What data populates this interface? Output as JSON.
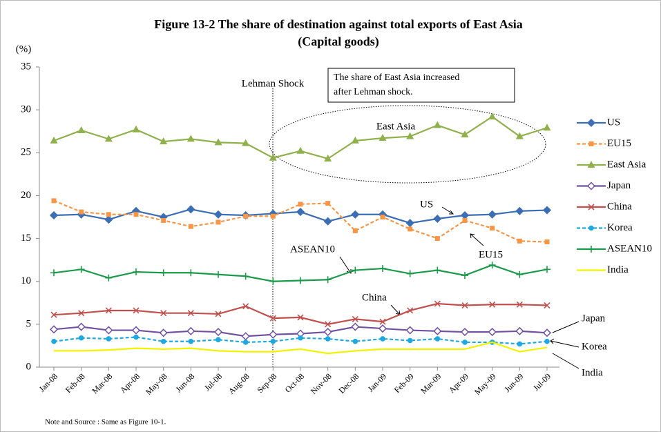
{
  "chart_data": {
    "type": "line",
    "title": [
      "Figure 13-2 The share of destination against total exports of East Asia",
      "(Capital goods)"
    ],
    "y_label": "(%)",
    "note": "Note and Source : Same as Figure 10-1.",
    "categories": [
      "Jan-08",
      "Feb-08",
      "Mar-08",
      "Apr-08",
      "May-08",
      "Jun-08",
      "Jul-08",
      "Aug-08",
      "Sep-08",
      "Oct-08",
      "Nov-08",
      "Dec-08",
      "Jan-09",
      "Feb-09",
      "Mar-09",
      "Apr-09",
      "May-09",
      "Jun-09",
      "Jul-09"
    ],
    "ylim": [
      0,
      35
    ],
    "yticks": [
      0,
      5,
      10,
      15,
      20,
      25,
      30,
      35
    ],
    "legend": "right",
    "series": [
      {
        "name": "US",
        "color": "#3c6eb4",
        "marker": "diamond",
        "values": [
          17.7,
          17.8,
          17.2,
          18.2,
          17.5,
          18.4,
          17.8,
          17.7,
          17.9,
          18.1,
          17.0,
          17.8,
          17.8,
          16.8,
          17.3,
          17.7,
          17.8,
          18.2,
          18.3
        ]
      },
      {
        "name": "EU15",
        "color": "#f79646",
        "marker": "square",
        "dashed": true,
        "values": [
          19.4,
          18.1,
          17.8,
          17.8,
          17.1,
          16.4,
          16.9,
          17.6,
          17.6,
          19.0,
          19.1,
          15.9,
          17.5,
          16.1,
          15.0,
          17.1,
          16.2,
          14.7,
          14.6
        ]
      },
      {
        "name": "East Asia",
        "color": "#8fb04a",
        "marker": "triangle",
        "values": [
          26.4,
          27.6,
          26.6,
          27.7,
          26.3,
          26.6,
          26.2,
          26.1,
          24.4,
          25.2,
          24.3,
          26.4,
          26.7,
          26.9,
          28.2,
          27.1,
          29.2,
          26.9,
          27.9
        ]
      },
      {
        "name": "Japan",
        "color": "#7050a0",
        "marker": "hollow-diamond",
        "values": [
          4.4,
          4.7,
          4.3,
          4.3,
          4.0,
          4.2,
          4.1,
          3.6,
          3.8,
          3.9,
          4.1,
          4.7,
          4.5,
          4.3,
          4.2,
          4.1,
          4.1,
          4.2,
          4.0
        ]
      },
      {
        "name": "China",
        "color": "#c0504d",
        "marker": "x",
        "values": [
          6.1,
          6.3,
          6.6,
          6.6,
          6.3,
          6.3,
          6.2,
          7.1,
          5.7,
          5.8,
          5.0,
          5.6,
          5.3,
          6.6,
          7.4,
          7.2,
          7.3,
          7.3,
          7.2
        ]
      },
      {
        "name": "Korea",
        "color": "#1fa8e0",
        "marker": "circle",
        "dashed": true,
        "values": [
          3.0,
          3.4,
          3.3,
          3.5,
          3.0,
          3.0,
          3.2,
          2.9,
          3.0,
          3.4,
          3.3,
          3.0,
          3.3,
          3.1,
          3.3,
          2.9,
          2.9,
          2.7,
          3.0
        ]
      },
      {
        "name": "ASEAN10",
        "color": "#1a9a48",
        "marker": "plus",
        "values": [
          11.0,
          11.4,
          10.4,
          11.1,
          11.0,
          11.0,
          10.8,
          10.6,
          10.0,
          10.1,
          10.2,
          11.3,
          11.5,
          10.9,
          11.3,
          10.7,
          11.9,
          10.8,
          11.4
        ]
      },
      {
        "name": "India",
        "color": "#f2f200",
        "marker": "none",
        "values": [
          1.9,
          1.9,
          2.0,
          2.2,
          2.1,
          2.2,
          1.9,
          1.8,
          1.8,
          2.1,
          1.6,
          1.9,
          2.1,
          2.1,
          2.1,
          2.1,
          2.9,
          1.8,
          2.3
        ]
      }
    ],
    "annotations": [
      "Lehman Shock",
      "East Asia",
      "US",
      "EU15",
      "ASEAN10",
      "China",
      "Japan",
      "Korea",
      "India"
    ],
    "box_text": [
      "The share of East Asia increased",
      "after Lehman shock."
    ]
  }
}
